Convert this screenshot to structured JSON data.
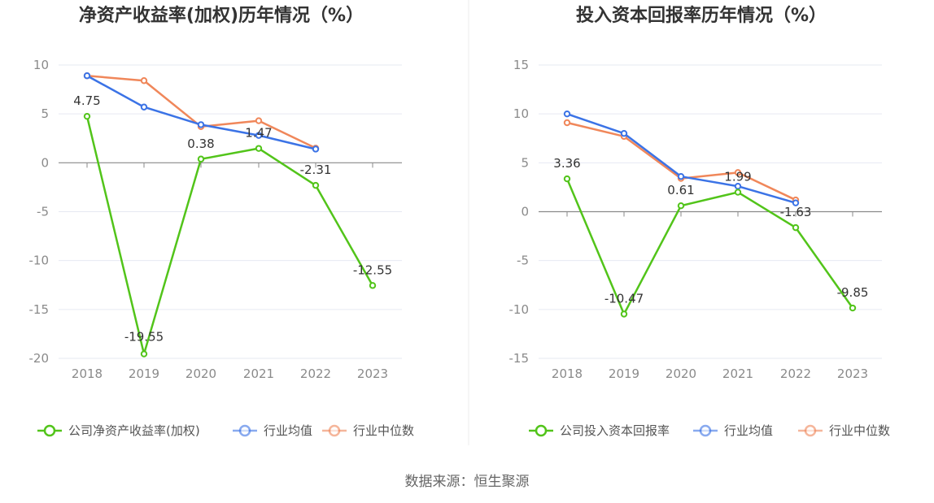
{
  "source": "数据来源：恒生聚源",
  "colors": {
    "company": "#52c41a",
    "avg": "#3b73e6",
    "median": "#f0875a",
    "grid": "#e6e9f2",
    "axis": "#8a8a8a"
  },
  "chart_data": [
    {
      "type": "line",
      "title": "净资产收益率(加权)历年情况（%）",
      "categories": [
        "2018",
        "2019",
        "2020",
        "2021",
        "2022",
        "2023"
      ],
      "ylim": [
        -20,
        10
      ],
      "yticks": [
        10,
        5,
        0,
        -5,
        -10,
        -15,
        -20
      ],
      "legend_position": "bottom",
      "series": [
        {
          "name": "公司净资产收益率(加权)",
          "key": "company",
          "values": [
            4.75,
            -19.55,
            0.38,
            1.47,
            -2.31,
            -12.55
          ],
          "labels": [
            "4.75",
            "-19.55",
            "0.38",
            "1.47",
            "-2.31",
            "-12.55"
          ]
        },
        {
          "name": "行业均值",
          "key": "avg",
          "values": [
            8.9,
            5.7,
            3.9,
            2.8,
            1.4,
            null
          ]
        },
        {
          "name": "行业中位数",
          "key": "median",
          "values": [
            8.9,
            8.4,
            3.7,
            4.3,
            1.5,
            null
          ]
        }
      ]
    },
    {
      "type": "line",
      "title": "投入资本回报率历年情况（%）",
      "categories": [
        "2018",
        "2019",
        "2020",
        "2021",
        "2022",
        "2023"
      ],
      "ylim": [
        -15,
        15
      ],
      "yticks": [
        15,
        10,
        5,
        0,
        -5,
        -10,
        -15
      ],
      "legend_position": "bottom",
      "series": [
        {
          "name": "公司投入资本回报率",
          "key": "company",
          "values": [
            3.36,
            -10.47,
            0.61,
            1.99,
            -1.63,
            -9.85
          ],
          "labels": [
            "3.36",
            "-10.47",
            "0.61",
            "1.99",
            "-1.63",
            "-9.85"
          ]
        },
        {
          "name": "行业均值",
          "key": "avg",
          "values": [
            10.0,
            8.0,
            3.6,
            2.6,
            0.9,
            null
          ]
        },
        {
          "name": "行业中位数",
          "key": "median",
          "values": [
            9.1,
            7.7,
            3.4,
            4.0,
            1.2,
            null
          ]
        }
      ]
    }
  ]
}
